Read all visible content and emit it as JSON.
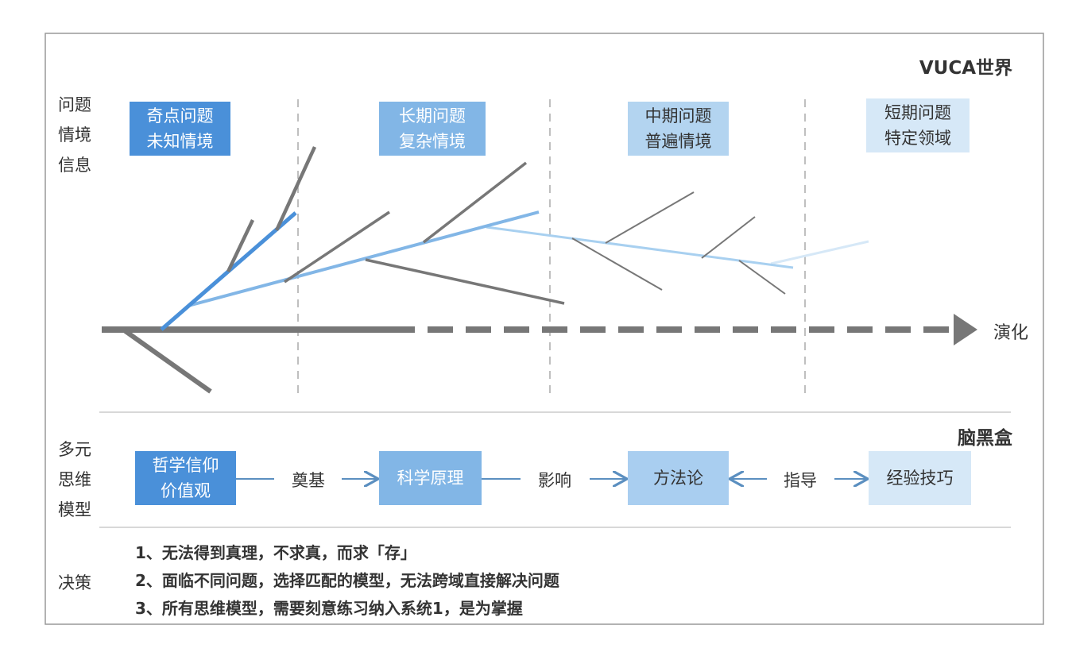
{
  "world": {
    "title": "VUCA世界",
    "side_label": [
      "问题",
      "情境",
      "信息"
    ],
    "boxes": [
      [
        "奇点问题",
        "未知情境"
      ],
      [
        "长期问题",
        "复杂情境"
      ],
      [
        "中期问题",
        "普遍情境"
      ],
      [
        "短期问题",
        "特定领域"
      ]
    ],
    "axis_label": "演化"
  },
  "black_box": {
    "title": "脑黑盒",
    "side_label": [
      "多元",
      "思维",
      "模型"
    ],
    "boxes": [
      [
        "哲学信仰",
        "价值观"
      ],
      [
        "科学原理"
      ],
      [
        "方法论"
      ],
      [
        "经验技巧"
      ]
    ],
    "links": [
      "奠基",
      "影响",
      "指导"
    ]
  },
  "decision": {
    "side_label": "决策",
    "items": [
      "1、无法得到真理，不求真，而求「存」",
      "2、面临不同问题，选择匹配的模型，无法跨域直接解决问题",
      "3、所有思维模型，需要刻意练习纳入系统1，是为掌握"
    ]
  }
}
